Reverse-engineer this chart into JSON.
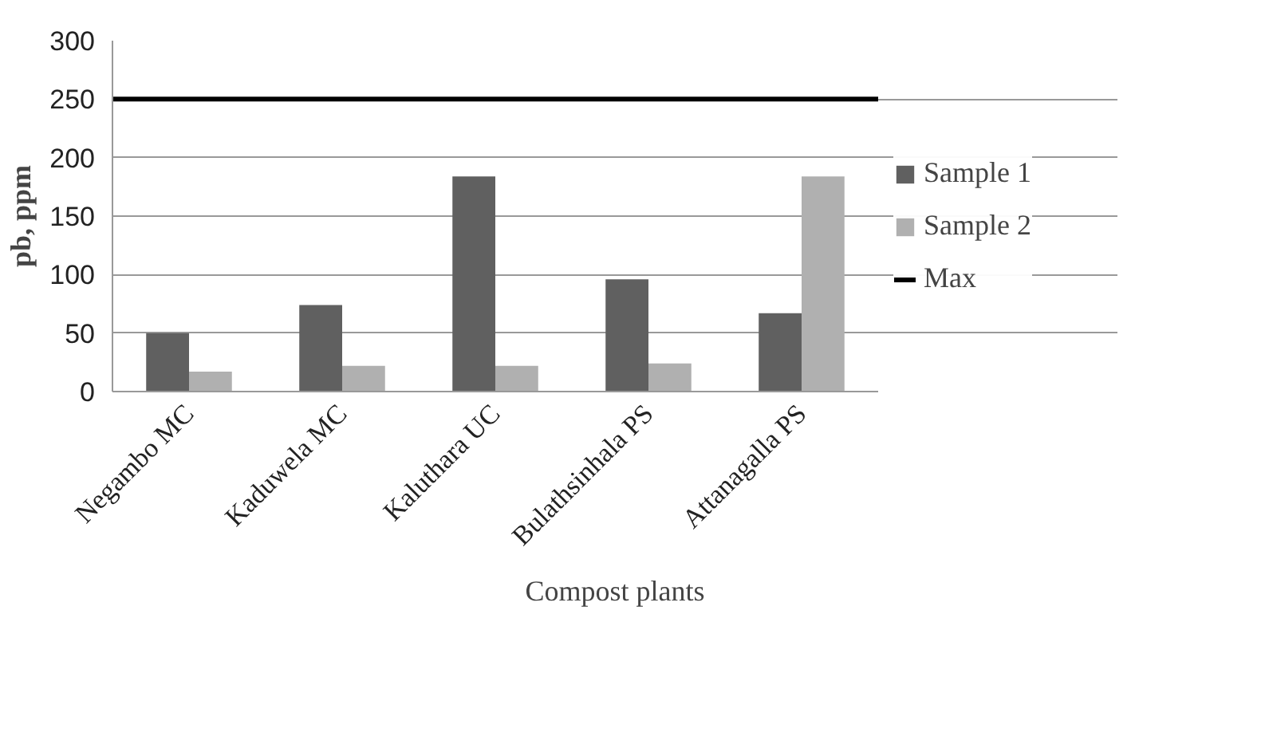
{
  "chart_data": {
    "type": "bar",
    "xlabel": "Compost plants",
    "ylabel": "pb, ppm",
    "categories": [
      "Negambo MC",
      "Kaduwela MC",
      "Kaluthara UC",
      "Bulathsinhala PS",
      "Attanagalla PS"
    ],
    "series": [
      {
        "name": "Sample 1",
        "color": "#606060",
        "values": [
          50,
          74,
          184,
          96,
          67
        ]
      },
      {
        "name": "Sample 2",
        "color": "#b0b0b0",
        "values": [
          17,
          22,
          22,
          24,
          184
        ]
      }
    ],
    "ylim": [
      0,
      300
    ],
    "yticks": [
      0,
      50,
      100,
      150,
      200,
      250,
      300
    ],
    "grid": "y",
    "legend": "right",
    "ref_lines": [
      {
        "axis": "y",
        "value": 250,
        "label": "Max",
        "color": "#000000",
        "line_style": "solid"
      }
    ]
  }
}
